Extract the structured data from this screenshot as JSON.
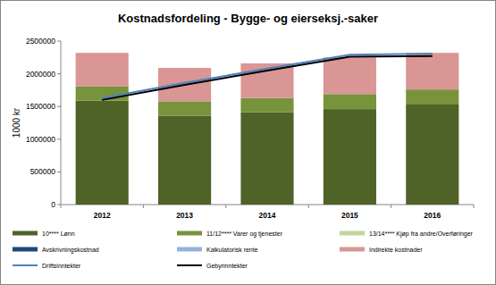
{
  "chart_data": {
    "type": "bar",
    "title": "Kostnadsfordeling - Bygge- og eierseksj.-saker",
    "y_label": "1000 kr",
    "categories": [
      "2012",
      "2013",
      "2014",
      "2015",
      "2016"
    ],
    "stacked": true,
    "grid": false,
    "legend": "bottom",
    "ylim": [
      0,
      2500000
    ],
    "yticks": [
      0,
      500000,
      1000000,
      1500000,
      2000000,
      2500000
    ],
    "series": [
      {
        "name": "10**** Lønn",
        "color": "#4f6228",
        "type": "bar",
        "values": [
          1590000,
          1360000,
          1410000,
          1460000,
          1530000
        ]
      },
      {
        "name": "11/12**** Varer og tjenester",
        "color": "#77933c",
        "type": "bar",
        "values": [
          220000,
          220000,
          220000,
          230000,
          230000
        ]
      },
      {
        "name": "13/14**** Kjøp fra andre/Overføringer",
        "color": "#c3d69b",
        "type": "bar",
        "values": [
          0,
          0,
          0,
          0,
          0
        ]
      },
      {
        "name": "Avskrivningskostnad",
        "color": "#1f497d",
        "type": "bar",
        "values": [
          0,
          0,
          0,
          0,
          0
        ]
      },
      {
        "name": "Kalkulatorisk rente",
        "color": "#95b3d7",
        "type": "bar",
        "values": [
          0,
          0,
          0,
          0,
          0
        ]
      },
      {
        "name": "Indirekte kostnader",
        "color": "#d99694",
        "type": "bar",
        "values": [
          510000,
          510000,
          530000,
          560000,
          560000
        ]
      },
      {
        "name": "Driftsinntekter",
        "color": "#4f81bd",
        "type": "line",
        "values": [
          1630000,
          1860000,
          2080000,
          2290000,
          2310000
        ]
      },
      {
        "name": "Gebyrinntekter",
        "color": "#000000",
        "type": "line",
        "values": [
          1600000,
          1830000,
          2050000,
          2260000,
          2270000
        ]
      }
    ]
  }
}
